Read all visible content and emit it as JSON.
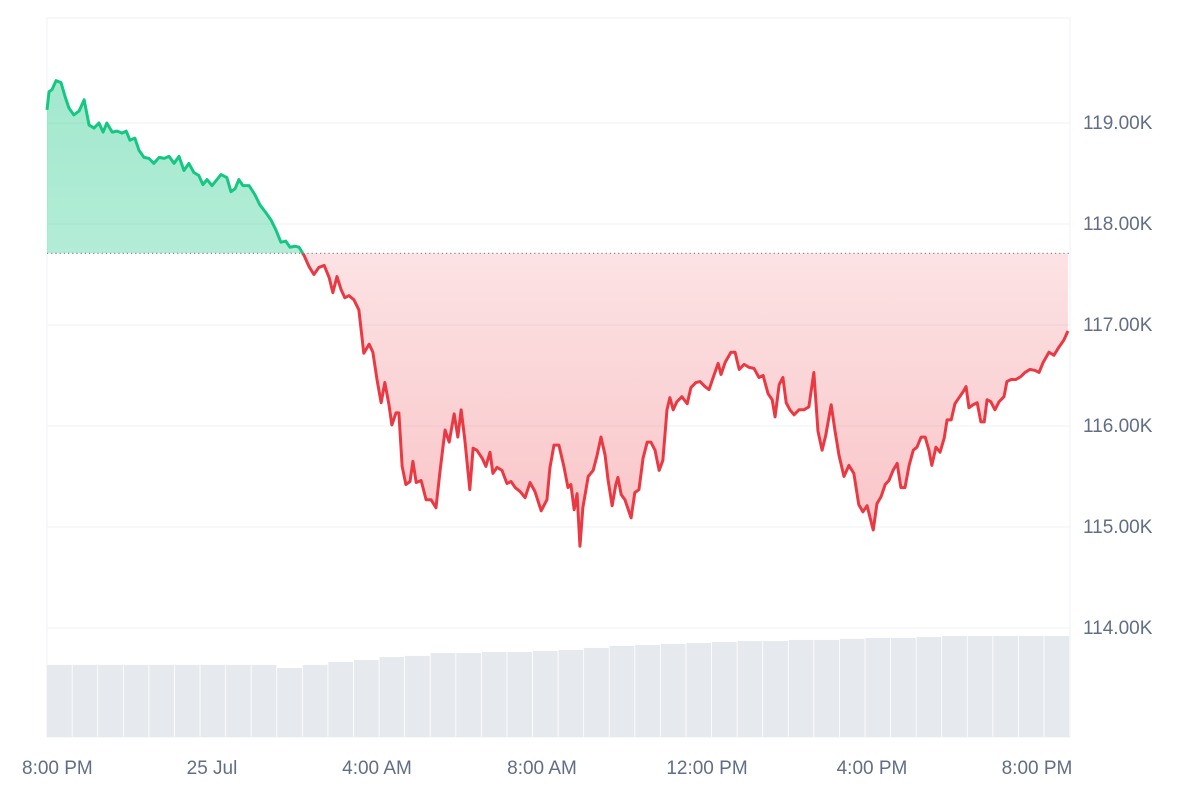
{
  "chart_data": {
    "type": "line",
    "x": [
      0.0,
      0.05,
      0.12,
      0.22,
      0.34,
      0.44,
      0.53,
      0.65,
      0.78,
      0.9,
      1.02,
      1.14,
      1.26,
      1.36,
      1.45,
      1.58,
      1.7,
      1.82,
      1.92,
      2.01,
      2.13,
      2.23,
      2.35,
      2.47,
      2.59,
      2.72,
      2.84,
      2.96,
      3.08,
      3.2,
      3.32,
      3.44,
      3.56,
      3.68,
      3.78,
      3.88,
      4.0,
      4.12,
      4.22,
      4.36,
      4.46,
      4.56,
      4.65,
      4.75,
      4.9,
      5.04,
      5.16,
      5.31,
      5.43,
      5.55,
      5.67,
      5.79,
      5.89,
      6.01,
      6.11,
      6.23,
      6.35,
      6.47,
      6.59,
      6.72,
      6.84,
      6.93,
      7.03,
      7.13,
      7.22,
      7.32,
      7.44,
      7.56,
      7.68,
      7.81,
      7.9,
      8.0,
      8.1,
      8.19,
      8.29,
      8.36,
      8.46,
      8.53,
      8.61,
      8.7,
      8.8,
      8.87,
      8.95,
      9.07,
      9.19,
      9.31,
      9.43,
      9.53,
      9.65,
      9.75,
      9.87,
      9.96,
      10.04,
      10.13,
      10.25,
      10.33,
      10.42,
      10.55,
      10.64,
      10.74,
      10.81,
      10.91,
      11.03,
      11.15,
      11.25,
      11.35,
      11.47,
      11.59,
      11.71,
      11.83,
      11.98,
      12.12,
      12.19,
      12.29,
      12.41,
      12.53,
      12.63,
      12.7,
      12.78,
      12.85,
      12.92,
      12.99,
      13.12,
      13.24,
      13.33,
      13.43,
      13.53,
      13.6,
      13.7,
      13.79,
      13.84,
      13.92,
      14.01,
      14.16,
      14.25,
      14.35,
      14.45,
      14.55,
      14.64,
      14.74,
      14.84,
      14.93,
      15.03,
      15.1,
      15.18,
      15.27,
      15.39,
      15.52,
      15.61,
      15.73,
      15.83,
      15.95,
      16.05,
      16.15,
      16.27,
      16.34,
      16.44,
      16.58,
      16.68,
      16.78,
      16.9,
      17.02,
      17.14,
      17.26,
      17.36,
      17.48,
      17.58,
      17.65,
      17.75,
      17.84,
      17.92,
      18.01,
      18.11,
      18.23,
      18.35,
      18.47,
      18.59,
      18.69,
      18.79,
      18.88,
      19.01,
      19.1,
      19.2,
      19.32,
      19.44,
      19.56,
      19.68,
      19.78,
      19.88,
      20.03,
      20.12,
      20.22,
      20.32,
      20.41,
      20.51,
      20.61,
      20.7,
      20.8,
      20.9,
      21.0,
      21.09,
      21.19,
      21.29,
      21.38,
      21.45,
      21.55,
      21.65,
      21.75,
      21.82,
      21.92,
      22.01,
      22.11,
      22.21,
      22.28,
      22.35,
      22.45,
      22.55,
      22.64,
      22.72,
      22.79,
      22.88,
      22.98,
      23.08,
      23.2,
      23.27,
      23.37,
      23.49,
      23.61,
      23.71,
      23.83,
      23.95,
      24.05,
      24.15,
      24.29,
      24.41,
      24.53,
      24.65,
      24.75
    ],
    "values": [
      119130,
      119310,
      119330,
      119420,
      119400,
      119260,
      119150,
      119080,
      119120,
      119230,
      118980,
      118950,
      119000,
      118910,
      119000,
      118910,
      118920,
      118900,
      118920,
      118830,
      118850,
      118730,
      118660,
      118650,
      118600,
      118660,
      118650,
      118670,
      118600,
      118670,
      118530,
      118600,
      118510,
      118480,
      118390,
      118440,
      118380,
      118440,
      118490,
      118460,
      118320,
      118350,
      118440,
      118380,
      118380,
      118290,
      118190,
      118110,
      118040,
      117940,
      117820,
      117830,
      117770,
      117780,
      117770,
      117690,
      117580,
      117500,
      117570,
      117590,
      117470,
      117320,
      117480,
      117350,
      117270,
      117290,
      117250,
      117150,
      116720,
      116810,
      116730,
      116460,
      116230,
      116430,
      116210,
      116010,
      116130,
      116130,
      115600,
      115420,
      115450,
      115650,
      115440,
      115460,
      115270,
      115270,
      115190,
      115560,
      115960,
      115840,
      116120,
      115890,
      116160,
      115860,
      115370,
      115780,
      115760,
      115680,
      115600,
      115740,
      115530,
      115590,
      115560,
      115430,
      115450,
      115390,
      115350,
      115290,
      115440,
      115350,
      115160,
      115270,
      115580,
      115810,
      115810,
      115600,
      115390,
      115420,
      115170,
      115330,
      114810,
      115190,
      115500,
      115560,
      115700,
      115890,
      115710,
      115470,
      115210,
      115420,
      115490,
      115320,
      115270,
      115090,
      115340,
      115370,
      115680,
      115840,
      115840,
      115760,
      115560,
      115660,
      116160,
      116280,
      116160,
      116240,
      116290,
      116220,
      116380,
      116430,
      116440,
      116390,
      116360,
      116480,
      116620,
      116510,
      116630,
      116730,
      116730,
      116560,
      116610,
      116580,
      116570,
      116480,
      116500,
      116320,
      116260,
      116090,
      116410,
      116480,
      116230,
      116160,
      116110,
      116160,
      116160,
      116190,
      116530,
      115950,
      115760,
      115910,
      116210,
      115960,
      115710,
      115500,
      115610,
      115530,
      115220,
      115150,
      115210,
      114970,
      115230,
      115300,
      115420,
      115460,
      115560,
      115630,
      115390,
      115390,
      115610,
      115760,
      115790,
      115890,
      115890,
      115760,
      115610,
      115790,
      115740,
      115880,
      116060,
      116060,
      116220,
      116280,
      116340,
      116390,
      116180,
      116210,
      116230,
      116040,
      116040,
      116260,
      116240,
      116160,
      116240,
      116290,
      116440,
      116460,
      116460,
      116490,
      116530,
      116560,
      116550,
      116530,
      116630,
      116730,
      116700,
      116780,
      116850,
      116940
    ],
    "baseline": 117710,
    "up_color": "#16c784",
    "down_color": "#ea3943",
    "volume": {
      "color": "#e6e9ee",
      "x": [
        0,
        0.62,
        1.24,
        1.86,
        2.48,
        3.1,
        3.72,
        4.34,
        4.96,
        5.58,
        6.2,
        6.82,
        7.44,
        8.06,
        8.68,
        9.3,
        9.92,
        10.54,
        11.16,
        11.78,
        12.4,
        13.02,
        13.64,
        14.26,
        14.88,
        15.5,
        16.12,
        16.74,
        17.36,
        17.98,
        18.6,
        19.22,
        19.84,
        20.46,
        21.08,
        21.7,
        22.32,
        22.94,
        23.56,
        24.18
      ],
      "values": [
        113634,
        113634,
        113634,
        113634,
        113634,
        113634,
        113634,
        113634,
        113634,
        113604,
        113634,
        113663,
        113683,
        113713,
        113723,
        113752,
        113752,
        113762,
        113762,
        113772,
        113782,
        113802,
        113822,
        113832,
        113842,
        113851,
        113861,
        113871,
        113871,
        113881,
        113881,
        113891,
        113901,
        113901,
        113911,
        113921,
        113921,
        113921,
        113921,
        113921
      ]
    },
    "xlim": [
      0,
      24.8
    ],
    "xticks": [
      {
        "value": 0,
        "label": "8:00 PM"
      },
      {
        "value": 4,
        "label": "25 Jul"
      },
      {
        "value": 8,
        "label": "4:00 AM"
      },
      {
        "value": 12,
        "label": "8:00 AM"
      },
      {
        "value": 16,
        "label": "12:00 PM"
      },
      {
        "value": 20,
        "label": "4:00 PM"
      },
      {
        "value": 24,
        "label": "8:00 PM"
      }
    ],
    "ylim": [
      112920,
      120040
    ],
    "yticks": [
      {
        "value": 114000,
        "label": "114.00K"
      },
      {
        "value": 115000,
        "label": "115.00K"
      },
      {
        "value": 116000,
        "label": "116.00K"
      },
      {
        "value": 117000,
        "label": "117.00K"
      },
      {
        "value": 118000,
        "label": "118.00K"
      },
      {
        "value": 119000,
        "label": "119.00K"
      }
    ],
    "grid": true
  }
}
